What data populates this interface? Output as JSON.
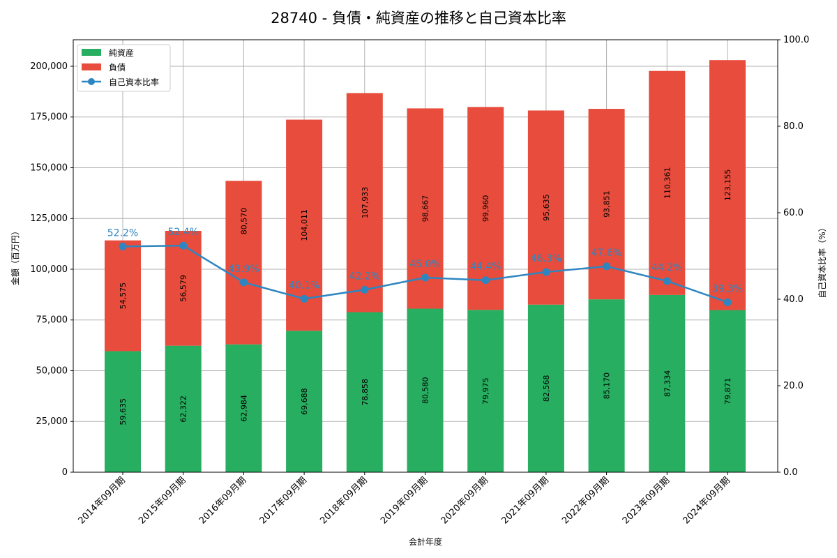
{
  "chart_data": {
    "type": "bar",
    "title": "28740 - 負債・純資産の推移と自己資本比率",
    "xlabel": "会計年度",
    "ylabel": "金額（百万円）",
    "y2label": "自己資本比率（%）",
    "ylim": [
      0,
      213058
    ],
    "y2lim": [
      0,
      100
    ],
    "yticks": [
      "0",
      "25,000",
      "50,000",
      "75,000",
      "100,000",
      "125,000",
      "150,000",
      "175,000",
      "200,000"
    ],
    "y2ticks": [
      "0.0",
      "20.0",
      "40.0",
      "60.0",
      "80.0",
      "100.0"
    ],
    "grid": true,
    "legend_position": "top-left",
    "categories": [
      "2014年09月期",
      "2015年09月期",
      "2016年09月期",
      "2017年09月期",
      "2018年09月期",
      "2019年09月期",
      "2020年09月期",
      "2021年09月期",
      "2022年09月期",
      "2023年09月期",
      "2024年09月期"
    ],
    "series": [
      {
        "name": "純資産",
        "type": "bar",
        "color": "#27ae60",
        "values": [
          59635,
          62322,
          62984,
          69688,
          78858,
          80580,
          79975,
          82568,
          85170,
          87334,
          79871
        ],
        "labels": [
          "59,635",
          "62,322",
          "62,984",
          "69,688",
          "78,858",
          "80,580",
          "79,975",
          "82,568",
          "85,170",
          "87,334",
          "79,871"
        ]
      },
      {
        "name": "負債",
        "type": "bar",
        "color": "#e74c3c",
        "values": [
          54575,
          56579,
          80570,
          104011,
          107933,
          98667,
          99960,
          95635,
          93851,
          110361,
          123155
        ],
        "labels": [
          "54,575",
          "56,579",
          "80,570",
          "104,011",
          "107,933",
          "98,667",
          "99,960",
          "95,635",
          "93,851",
          "110,361",
          "123,155"
        ]
      },
      {
        "name": "自己資本比率",
        "type": "line",
        "axis": "right",
        "color": "#2e86c1",
        "values": [
          52.2,
          52.4,
          43.9,
          40.1,
          42.2,
          45.0,
          44.4,
          46.3,
          47.6,
          44.2,
          39.3
        ],
        "labels": [
          "52.2%",
          "52.4%",
          "43.9%",
          "40.1%",
          "42.2%",
          "45.0%",
          "44.4%",
          "46.3%",
          "47.6%",
          "44.2%",
          "39.3%"
        ]
      }
    ]
  }
}
